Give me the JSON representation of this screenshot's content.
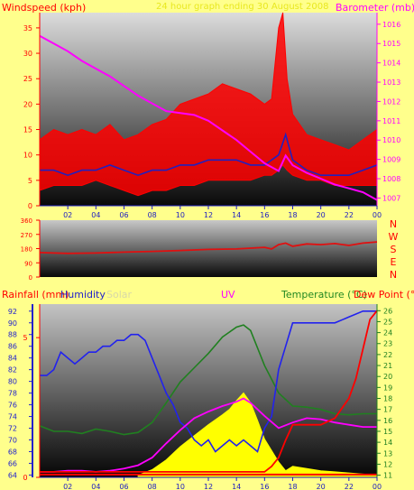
{
  "colors": {
    "background": "#ffff8c",
    "wind": "#ff0000",
    "wind_avg": "#2020c0",
    "barometer": "#ff00ff",
    "direction": "#e01010",
    "humidity": "#2222ee",
    "solar": "#ffff00",
    "uv": "#ff00ff",
    "temperature": "#208020",
    "dewpoint": "#ff0000",
    "rainfall": "#ff0000"
  },
  "chart_data": [
    {
      "type": "line",
      "title": "24 hour graph ending 30 August 2008",
      "ylabel_left": "Windspeed (kph)",
      "ylabel_right": "Barometer (mb)",
      "x_ticks": [
        "02",
        "04",
        "06",
        "08",
        "10",
        "12",
        "14",
        "16",
        "18",
        "20",
        "22",
        "00"
      ],
      "y_ticks_left": [
        "0",
        "5",
        "10",
        "15",
        "20",
        "25",
        "30",
        "35"
      ],
      "y_ticks_right": [
        "1007",
        "1008",
        "1009",
        "1010",
        "1011",
        "1012",
        "1013",
        "1014",
        "1015",
        "1016"
      ],
      "ylim_left": [
        0,
        38
      ],
      "ylim_right": [
        1006.6,
        1016.6
      ],
      "grid": false,
      "series": [
        {
          "name": "Windspeed",
          "axis": "left",
          "style": "band",
          "color": "#ff0000",
          "x": [
            0,
            1,
            2,
            3,
            4,
            5,
            6,
            7,
            8,
            9,
            10,
            11,
            12,
            13,
            14,
            15,
            16,
            16.5,
            17,
            17.3,
            17.6,
            18,
            19,
            20,
            21,
            22,
            23,
            24
          ],
          "low": [
            3,
            4,
            4,
            4,
            5,
            4,
            3,
            2,
            3,
            3,
            4,
            4,
            5,
            5,
            5,
            5,
            6,
            6,
            7,
            8,
            7,
            6,
            5,
            5,
            4,
            4,
            4,
            4
          ],
          "high": [
            13,
            15,
            14,
            15,
            14,
            16,
            13,
            14,
            16,
            17,
            20,
            21,
            22,
            24,
            23,
            22,
            20,
            21,
            35,
            38,
            25,
            18,
            14,
            13,
            12,
            11,
            13,
            15
          ]
        },
        {
          "name": "Wind average",
          "axis": "left",
          "color": "#2020c0",
          "x": [
            0,
            1,
            2,
            3,
            4,
            5,
            6,
            7,
            8,
            9,
            10,
            11,
            12,
            13,
            14,
            15,
            16,
            17,
            17.5,
            18,
            19,
            20,
            21,
            22,
            23,
            24
          ],
          "y": [
            7,
            7,
            6,
            7,
            7,
            8,
            7,
            6,
            7,
            7,
            8,
            8,
            9,
            9,
            9,
            8,
            8,
            10,
            14,
            9,
            7,
            6,
            6,
            6,
            7,
            8
          ]
        },
        {
          "name": "Barometer",
          "axis": "right",
          "color": "#ff00ff",
          "x": [
            0,
            1,
            2,
            3,
            4,
            5,
            6,
            7,
            8,
            9,
            10,
            11,
            12,
            13,
            14,
            15,
            16,
            17,
            17.5,
            18,
            19,
            20,
            21,
            22,
            23,
            24
          ],
          "y": [
            1015.4,
            1015.0,
            1014.6,
            1014.1,
            1013.7,
            1013.3,
            1012.8,
            1012.3,
            1011.9,
            1011.5,
            1011.4,
            1011.3,
            1011.0,
            1010.5,
            1010.0,
            1009.4,
            1008.8,
            1008.4,
            1009.2,
            1008.7,
            1008.3,
            1008.0,
            1007.7,
            1007.5,
            1007.3,
            1006.9
          ]
        }
      ]
    },
    {
      "type": "line",
      "ylabel_right_letters": [
        "N",
        "W",
        "S",
        "E",
        "N"
      ],
      "y_ticks_left": [
        "0",
        "90",
        "180",
        "270",
        "360"
      ],
      "ylim": [
        0,
        360
      ],
      "series": [
        {
          "name": "Wind direction",
          "color": "#e01010",
          "x": [
            0,
            2,
            4,
            6,
            8,
            10,
            12,
            14,
            16,
            16.5,
            17,
            17.5,
            18,
            19,
            20,
            21,
            22,
            23,
            24
          ],
          "y": [
            155,
            150,
            152,
            158,
            162,
            168,
            175,
            178,
            188,
            178,
            205,
            215,
            195,
            210,
            205,
            212,
            200,
            215,
            222
          ]
        }
      ]
    },
    {
      "type": "line",
      "legend": [
        "Rainfall (mm)",
        "Humidity",
        "Solar",
        "UV",
        "Temperature (°C)",
        "Dew Point (°C)"
      ],
      "x_ticks": [
        "02",
        "04",
        "06",
        "08",
        "10",
        "12",
        "14",
        "16",
        "18",
        "20",
        "22",
        "00"
      ],
      "y_ticks_humidity": [
        "64",
        "66",
        "68",
        "70",
        "72",
        "74",
        "76",
        "78",
        "80",
        "82",
        "84",
        "86",
        "88",
        "90",
        "92"
      ],
      "y_ticks_temperature": [
        "11",
        "12",
        "13",
        "14",
        "15",
        "16",
        "17",
        "18",
        "19",
        "20",
        "21",
        "22",
        "23",
        "24",
        "25",
        "26"
      ],
      "y_ticks_rain": [
        "0",
        "5"
      ],
      "ylim_humidity": [
        63.6,
        93.2
      ],
      "ylim_temperature": [
        10.8,
        26.6
      ],
      "ylim_rain": [
        0,
        6.2
      ],
      "grid": false,
      "series": [
        {
          "name": "Humidity",
          "axis": "humidity",
          "color": "#2222ee",
          "x": [
            0,
            0.5,
            1,
            1.5,
            2,
            2.5,
            3,
            3.5,
            4,
            4.5,
            5,
            5.5,
            6,
            6.5,
            7,
            7.5,
            8,
            8.5,
            9,
            9.5,
            10,
            10.5,
            11,
            11.5,
            12,
            12.5,
            13,
            13.5,
            14,
            14.5,
            15,
            15.5,
            16,
            16.5,
            17,
            17.5,
            18,
            19,
            20,
            21,
            22,
            23,
            24
          ],
          "y": [
            81,
            81,
            82,
            85,
            84,
            83,
            84,
            85,
            85,
            86,
            86,
            87,
            87,
            88,
            88,
            87,
            84,
            81,
            78,
            76,
            73,
            72,
            70,
            69,
            70,
            68,
            69,
            70,
            69,
            70,
            69,
            68,
            72,
            74,
            82,
            86,
            90,
            90,
            90,
            90,
            91,
            92,
            92
          ]
        },
        {
          "name": "Temperature (°C)",
          "axis": "temperature",
          "color": "#208020",
          "x": [
            0,
            1,
            2,
            3,
            4,
            5,
            6,
            7,
            8,
            9,
            10,
            11,
            12,
            13,
            14,
            14.5,
            15,
            16,
            17,
            18,
            19,
            20,
            21,
            22,
            23,
            24
          ],
          "y": [
            15.5,
            15,
            15,
            14.8,
            15.2,
            15,
            14.7,
            14.9,
            15.8,
            17.6,
            19.5,
            20.8,
            22.1,
            23.6,
            24.5,
            24.7,
            24.2,
            21,
            18.5,
            17.3,
            17.2,
            17,
            16.6,
            16.5,
            16.6,
            16.6
          ]
        },
        {
          "name": "Dew Point (°C)",
          "axis": "temperature",
          "color": "#ff0000",
          "x": [
            0,
            16,
            16.5,
            17,
            17.5,
            18,
            19,
            20,
            21,
            22,
            22.5,
            23,
            23.5,
            24
          ],
          "y": [
            11.3,
            11.3,
            11.8,
            12.6,
            14.2,
            15.6,
            15.6,
            15.6,
            16.2,
            18,
            19.8,
            22.5,
            25.2,
            26
          ]
        },
        {
          "name": "UV",
          "axis": "temperature",
          "color": "#ff00ff",
          "x": [
            0,
            1,
            2,
            3,
            4,
            5,
            6,
            7,
            8,
            9,
            10,
            11,
            12,
            13,
            14,
            14.5,
            15,
            16,
            17,
            18,
            19,
            20,
            21,
            22,
            23,
            24
          ],
          "y": [
            11.3,
            11.3,
            11.4,
            11.4,
            11.3,
            11.4,
            11.6,
            11.9,
            12.6,
            13.9,
            15.1,
            16.2,
            16.8,
            17.3,
            17.7,
            18,
            17.6,
            16.4,
            15.3,
            15.8,
            16.2,
            16.1,
            15.8,
            15.6,
            15.4,
            15.4
          ]
        },
        {
          "name": "Solar",
          "axis": "temperature",
          "color": "#ffff00",
          "style": "area",
          "x": [
            7,
            8,
            9,
            10,
            11,
            12,
            13,
            13.5,
            14,
            14.5,
            15,
            15.5,
            16,
            17,
            17.5,
            18,
            19,
            20,
            21,
            22,
            23,
            24
          ],
          "y": [
            11,
            11.5,
            12.4,
            13.6,
            14.6,
            15.6,
            16.5,
            17,
            17.8,
            18.5,
            17.6,
            16,
            14.3,
            12.2,
            11.4,
            11.8,
            11.6,
            11.4,
            11.3,
            11.2,
            11.1,
            11
          ]
        },
        {
          "name": "Rainfall (mm)",
          "axis": "rain",
          "color": "#ff0000",
          "x": [
            0,
            24
          ],
          "y": [
            0.1,
            0.1
          ]
        }
      ]
    }
  ],
  "labels": {
    "title": "24 hour graph ending 30 August 2008",
    "windspeed": "Windspeed (kph)",
    "barometer": "Barometer (mb)",
    "rainfall": "Rainfall (mm)",
    "humidity": "Humidity",
    "solar": "Solar",
    "uv": "UV",
    "temperature": "Temperature (°C)",
    "dewpoint": "Dew Point (°C)"
  }
}
